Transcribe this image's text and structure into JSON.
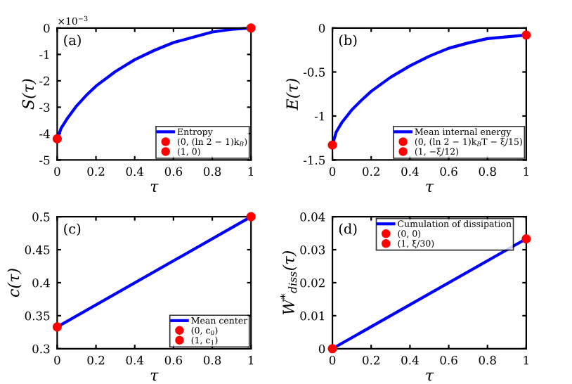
{
  "chart_data": [
    {
      "type": "line",
      "xlabel": "τ",
      "ylabel": "S(τ)",
      "annotations": [
        "(a)",
        "×10$^{−3}$"
      ],
      "legend": "bottom right",
      "grid": false,
      "xlim": [
        0,
        1
      ],
      "xticks": [
        0,
        0.2,
        0.4,
        0.6,
        0.8,
        1
      ],
      "ylim": [
        -5,
        0
      ],
      "yticks": [
        -5,
        -4,
        -3,
        -2,
        -1,
        0
      ],
      "series": [
        {
          "name": "Entropy",
          "color": "#0000ff",
          "x": [
            0,
            0.02,
            0.05,
            0.1,
            0.15,
            0.2,
            0.3,
            0.4,
            0.5,
            0.6,
            0.7,
            0.8,
            0.9,
            1
          ],
          "values": [
            -4.2,
            -3.8,
            -3.45,
            -2.95,
            -2.55,
            -2.2,
            -1.65,
            -1.2,
            -0.85,
            -0.55,
            -0.35,
            -0.15,
            -0.05,
            0
          ]
        },
        {
          "type": "scatter",
          "marker": "circle",
          "name": "(0, (ln 2 − 1)k$_{B}$)",
          "color": "#ff0000",
          "x": [
            0
          ],
          "values": [
            -4.2
          ]
        },
        {
          "type": "scatter",
          "marker": "circle",
          "name": "(1, 0)",
          "color": "#ff0000",
          "x": [
            1
          ],
          "values": [
            0
          ]
        }
      ]
    },
    {
      "type": "line",
      "xlabel": "τ",
      "ylabel": "E(τ)",
      "annotations": [
        "(b)"
      ],
      "legend": "bottom right",
      "grid": false,
      "xlim": [
        0,
        1
      ],
      "xticks": [
        0,
        0.2,
        0.4,
        0.6,
        0.8,
        1
      ],
      "ylim": [
        -1.5,
        0
      ],
      "yticks": [
        -1.5,
        -1,
        -0.5,
        0
      ],
      "series": [
        {
          "name": "Mean internal energy",
          "color": "#0000ff",
          "x": [
            0,
            0.02,
            0.05,
            0.1,
            0.15,
            0.2,
            0.3,
            0.4,
            0.5,
            0.6,
            0.7,
            0.8,
            0.9,
            1
          ],
          "values": [
            -1.33,
            -1.18,
            -1.07,
            -0.93,
            -0.82,
            -0.72,
            -0.56,
            -0.43,
            -0.32,
            -0.23,
            -0.17,
            -0.12,
            -0.1,
            -0.08
          ]
        },
        {
          "type": "scatter",
          "marker": "circle",
          "name": "(0, (ln 2 − 1)k$_{B}$T − ξ/15)",
          "color": "#ff0000",
          "x": [
            0
          ],
          "values": [
            -1.33
          ]
        },
        {
          "type": "scatter",
          "marker": "circle",
          "name": "(1, −ξ/12)",
          "color": "#ff0000",
          "x": [
            1
          ],
          "values": [
            -0.08
          ]
        }
      ]
    },
    {
      "type": "line",
      "xlabel": "τ",
      "ylabel": "c(τ)",
      "annotations": [
        "(c)"
      ],
      "legend": "bottom right",
      "grid": false,
      "xlim": [
        0,
        1
      ],
      "xticks": [
        0,
        0.2,
        0.4,
        0.6,
        0.8,
        1
      ],
      "ylim": [
        0.3,
        0.5
      ],
      "yticks": [
        0.3,
        0.35,
        0.4,
        0.45,
        0.5
      ],
      "series": [
        {
          "name": "Mean center",
          "color": "#0000ff",
          "x": [
            0,
            1
          ],
          "values": [
            0.333,
            0.5
          ]
        },
        {
          "type": "scatter",
          "marker": "circle",
          "name": "(0, c$_{0}$)",
          "color": "#ff0000",
          "x": [
            0
          ],
          "values": [
            0.333
          ]
        },
        {
          "type": "scatter",
          "marker": "circle",
          "name": "(1, c$_{1}$)",
          "color": "#ff0000",
          "x": [
            1
          ],
          "values": [
            0.5
          ]
        }
      ]
    },
    {
      "type": "line",
      "xlabel": "τ",
      "ylabel": "W$^{*}$$_{diss}$(τ)",
      "annotations": [
        "(d)"
      ],
      "legend": "top",
      "grid": false,
      "xlim": [
        0,
        1
      ],
      "xticks": [
        0,
        0.2,
        0.4,
        0.6,
        0.8,
        1
      ],
      "ylim": [
        0,
        0.04
      ],
      "yticks": [
        0,
        0.01,
        0.02,
        0.03,
        0.04
      ],
      "series": [
        {
          "name": "Cumulation of dissipation",
          "color": "#0000ff",
          "x": [
            0,
            1
          ],
          "values": [
            0,
            0.0333
          ]
        },
        {
          "type": "scatter",
          "marker": "circle",
          "name": "(0, 0)",
          "color": "#ff0000",
          "x": [
            0
          ],
          "values": [
            0
          ]
        },
        {
          "type": "scatter",
          "marker": "circle",
          "name": "(1, ξ/30)",
          "color": "#ff0000",
          "x": [
            1
          ],
          "values": [
            0.0333
          ]
        }
      ]
    }
  ]
}
